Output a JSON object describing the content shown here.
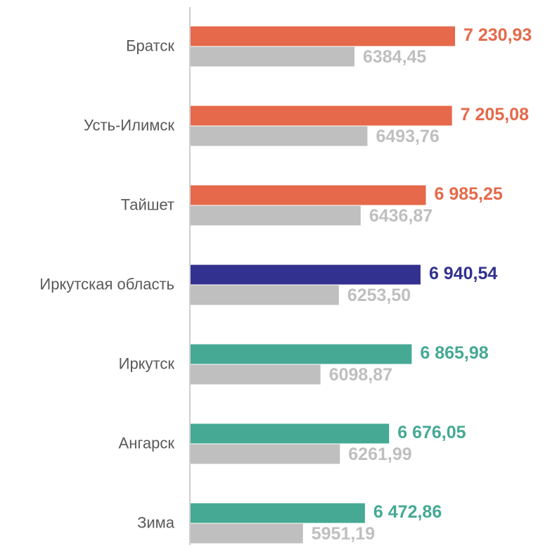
{
  "chart_data": {
    "type": "hbar",
    "categories": [
      "Братск",
      "Усть-Илимск",
      "Тайшет",
      "Иркутская область",
      "Иркутск",
      "Ангарск",
      "Зима"
    ],
    "series": [
      {
        "colors": [
          "#e5694a",
          "#e5694a",
          "#e5694a",
          "#33318f",
          "#45a994",
          "#45a994",
          "#45a994"
        ],
        "values": [
          7230.93,
          7205.08,
          6985.25,
          6940.54,
          6865.98,
          6676.05,
          6472.86
        ],
        "value_labels": [
          "7 230,93",
          "7 205,08",
          "6 985,25",
          "6 940,54",
          "6 865,98",
          "6 676,05",
          "6 472,86"
        ]
      },
      {
        "color": "#bfbfbf",
        "values": [
          6384.45,
          6493.76,
          6436.87,
          6253.5,
          6098.87,
          6261.99,
          5951.19
        ],
        "value_labels": [
          "6384,45",
          "6493,76",
          "6436,87",
          "6253,50",
          "6098,87",
          "6261,99",
          "5951,19"
        ]
      }
    ],
    "xlim": [
      5000,
      8000
    ]
  }
}
